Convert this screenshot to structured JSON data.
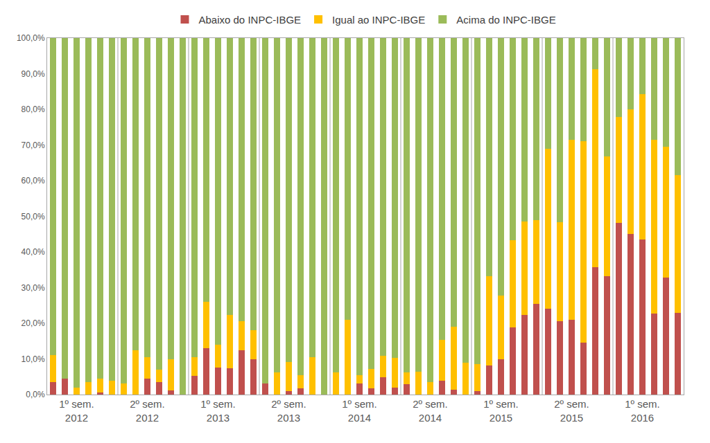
{
  "chart_data": {
    "type": "bar",
    "stacked": true,
    "grid": false,
    "legend": "top",
    "categories": [
      null,
      null,
      "1º sem.\n2012",
      null,
      null,
      null,
      null,
      null,
      "2º sem.\n2012",
      null,
      null,
      null,
      null,
      null,
      "1º sem.\n2013",
      null,
      null,
      null,
      null,
      null,
      "2º sem.\n2013",
      null,
      null,
      null,
      null,
      null,
      "1º sem.\n2014",
      null,
      null,
      null,
      null,
      null,
      "2º sem.\n2014",
      null,
      null,
      null,
      null,
      null,
      "1º sem.\n2015",
      null,
      null,
      null,
      null,
      null,
      "2º sem.\n2015",
      null,
      null,
      null,
      null,
      null,
      "1º sem.\n2016",
      null,
      null,
      null
    ],
    "series": [
      {
        "name": "Abaixo do INPC-IBGE",
        "color": "#c0504d",
        "values": [
          3.5,
          4.5,
          0,
          0,
          0.5,
          0,
          0,
          0,
          4.5,
          3.5,
          1.2,
          0,
          5.2,
          13,
          7.5,
          7.3,
          12.5,
          10,
          3.2,
          0,
          1,
          1.8,
          0,
          0,
          0,
          0,
          3.2,
          1.7,
          4.8,
          2,
          3,
          0,
          0,
          3.8,
          1.3,
          0,
          1,
          8.2,
          10,
          18.8,
          22.3,
          25.5,
          24,
          20.6,
          21,
          14.5,
          35.8,
          33.3,
          48.2,
          45,
          43.5,
          22.8,
          32.8,
          23
        ]
      },
      {
        "name": "Igual ao INPC-IBGE",
        "color": "#ffc000",
        "values": [
          7.5,
          0,
          2,
          3.5,
          4,
          3.8,
          3.2,
          12.5,
          6,
          3.5,
          8.8,
          0,
          5.3,
          13,
          6.5,
          15,
          8,
          8,
          0,
          6.3,
          8.2,
          3.7,
          10.5,
          0,
          6.2,
          21,
          2.3,
          5.5,
          6,
          8.2,
          3.2,
          6.5,
          3.5,
          11.5,
          17.7,
          9,
          7.5,
          25.1,
          17.8,
          24.5,
          26.2,
          23.5,
          45,
          27.7,
          50.5,
          56.5,
          55.4,
          33.5,
          29.6,
          35,
          40.7,
          48.7,
          36.7,
          38.5
        ]
      },
      {
        "name": "Acima do INPC-IBGE",
        "color": "#9bbb59",
        "values": [
          89,
          95.5,
          98,
          96.5,
          95.5,
          96.2,
          96.8,
          87.5,
          89.5,
          93,
          90,
          100,
          89.5,
          74,
          86,
          77.7,
          79.5,
          82,
          96.8,
          93.7,
          90.8,
          94.5,
          89.5,
          100,
          93.8,
          79,
          94.5,
          92.8,
          89.2,
          89.8,
          93.8,
          93.5,
          96.5,
          84.7,
          81,
          91,
          91.5,
          66.7,
          72.2,
          56.7,
          51.5,
          51,
          31,
          51.7,
          28.5,
          29,
          8.8,
          33.2,
          22.2,
          20,
          15.8,
          28.5,
          30.5,
          38.5
        ]
      }
    ],
    "ylim": [
      0,
      100
    ],
    "yticks": [
      {
        "value": 0,
        "label": "0,0%"
      },
      {
        "value": 10,
        "label": "10,0%"
      },
      {
        "value": 20,
        "label": "20,0%"
      },
      {
        "value": 30,
        "label": "30,0%"
      },
      {
        "value": 40,
        "label": "40,0%"
      },
      {
        "value": 50,
        "label": "50,0%"
      },
      {
        "value": 60,
        "label": "60,0%"
      },
      {
        "value": 70,
        "label": "70,0%"
      },
      {
        "value": 80,
        "label": "80,0%"
      },
      {
        "value": 90,
        "label": "90,0%"
      },
      {
        "value": 100,
        "label": "100,0%"
      }
    ]
  }
}
